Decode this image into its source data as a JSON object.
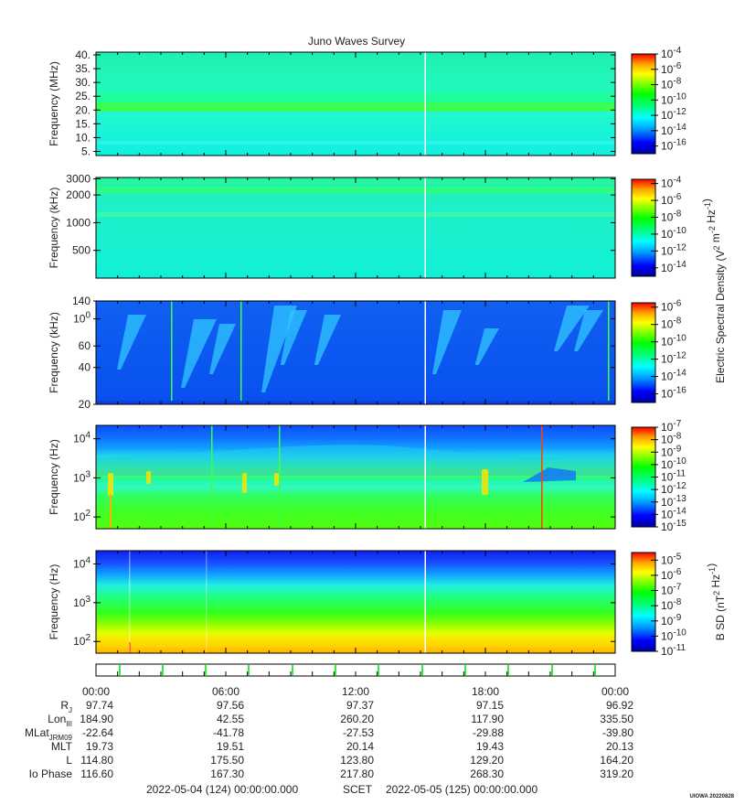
{
  "chart_data": {
    "title": "Juno Waves Survey",
    "type": "heatmap",
    "colormap": [
      "#0000a0",
      "#0000ff",
      "#00a0ff",
      "#00ffff",
      "#00ff80",
      "#00ff00",
      "#80ff00",
      "#ffff00",
      "#ffa000",
      "#ff0000"
    ],
    "panels": [
      {
        "ylabel": "Frequency (MHz)",
        "yscale": "linear",
        "ylim": [
          3.5,
          41
        ],
        "yticks": [
          "5.",
          "10.",
          "15.",
          "20.",
          "25.",
          "30.",
          "35.",
          "40."
        ],
        "ytick_values": [
          5,
          10,
          15,
          20,
          25,
          30,
          35,
          40
        ],
        "colorbar_ticks": [
          "10-4",
          "10-6",
          "10-8",
          "10-10",
          "10-12",
          "10-14",
          "10-16"
        ],
        "colorbar_range": [
          -17,
          -4
        ]
      },
      {
        "ylabel": "Frequency (kHz)",
        "yscale": "log",
        "ylim": [
          250,
          3100
        ],
        "yticks": [
          "3000",
          "2000",
          "1000",
          "500"
        ],
        "ytick_values": [
          3000,
          2000,
          1000,
          500
        ],
        "colorbar_ticks": [
          "10-4",
          "10-6",
          "10-8",
          "10-10",
          "10-12",
          "10-14"
        ],
        "colorbar_range": [
          -15,
          -3.5
        ]
      },
      {
        "ylabel": "Frequency (kHz)",
        "yscale": "log",
        "ylim": [
          20,
          140
        ],
        "yticks": [
          "140",
          "100",
          "60",
          "40",
          "20"
        ],
        "ytick_values": [
          140,
          100,
          60,
          40,
          20
        ],
        "colorbar_ticks": [
          "10-6",
          "10-8",
          "10-10",
          "10-12",
          "10-14",
          "10-16"
        ],
        "colorbar_range": [
          -17,
          -5.5
        ]
      },
      {
        "ylabel": "Frequency (Hz)",
        "yscale": "log",
        "ylim": [
          50,
          22000
        ],
        "yticks": [
          "104",
          "103",
          "102"
        ],
        "ytick_values": [
          10000,
          1000,
          100
        ],
        "colorbar_ticks": [
          "10-7",
          "10-8",
          "10-9",
          "10-10",
          "10-11",
          "10-12",
          "10-13",
          "10-14",
          "10-15"
        ],
        "colorbar_range": [
          -15,
          -7
        ]
      },
      {
        "ylabel": "Frequency (Hz)",
        "yscale": "log",
        "ylim": [
          50,
          22000
        ],
        "yticks": [
          "104",
          "103",
          "102"
        ],
        "ytick_values": [
          10000,
          1000,
          100
        ],
        "colorbar_ticks": [
          "10-5",
          "10-6",
          "10-7",
          "10-8",
          "10-9",
          "10-10",
          "10-11"
        ],
        "colorbar_range": [
          -11,
          -4.5
        ]
      }
    ],
    "colorbar_labels": [
      "Electric Spectral Density (V2 m-2 Hz-1)",
      "B SD (nT2 Hz-1)"
    ],
    "x_ticks": [
      "00:00",
      "06:00",
      "12:00",
      "18:00",
      "00:00"
    ]
  },
  "ephemeris": {
    "rows": [
      {
        "label": "RJ",
        "values": [
          "97.74",
          "97.56",
          "97.37",
          "97.15",
          "96.92"
        ]
      },
      {
        "label": "LonIII",
        "values": [
          "184.90",
          "42.55",
          "260.20",
          "117.90",
          "335.50"
        ]
      },
      {
        "label": "MLatJRM09",
        "values": [
          "-22.64",
          "-41.78",
          "-27.53",
          "-29.88",
          "-39.80"
        ]
      },
      {
        "label": "MLT",
        "values": [
          "19.73",
          "19.51",
          "20.14",
          "19.43",
          "20.13"
        ]
      },
      {
        "label": "L",
        "values": [
          "114.80",
          "175.50",
          "123.80",
          "129.20",
          "164.20"
        ]
      },
      {
        "label": "Io Phase",
        "values": [
          "116.60",
          "167.30",
          "217.80",
          "268.30",
          "319.20"
        ]
      }
    ]
  },
  "footer": {
    "start": "2022-05-04 (124) 00:00:00.000",
    "scet": "SCET",
    "end": "2022-05-05 (125) 00:00:00.000"
  },
  "credit": "UIOWA 20220828"
}
